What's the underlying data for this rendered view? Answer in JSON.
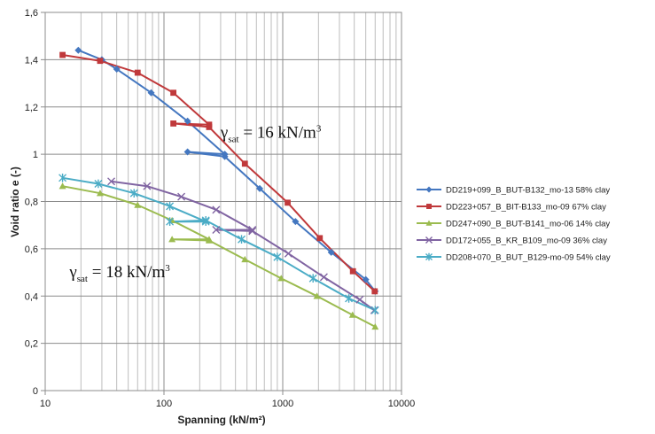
{
  "chart_data": {
    "type": "line",
    "xlabel": "Spanning  (kN/m²)",
    "ylabel": "Void ratio e (-)",
    "xscale": "log",
    "xlim": [
      10,
      10000
    ],
    "ylim": [
      0,
      1.6
    ],
    "x_ticks": [
      10,
      100,
      1000,
      10000
    ],
    "x_tick_labels": [
      "10",
      "100",
      "1000",
      "10000"
    ],
    "y_ticks": [
      0,
      0.2,
      0.4,
      0.6,
      0.8,
      1,
      1.2,
      1.4,
      1.6
    ],
    "y_tick_labels": [
      "0",
      "0,2",
      "0,4",
      "0,6",
      "0,8",
      "1",
      "1,2",
      "1,4",
      "1,6"
    ],
    "grid": "log-minor vertical, major horizontal",
    "legend_position": "right",
    "annotations": [
      {
        "prefix": "γ",
        "sub": "sat",
        "rest": " = 16 kN/m",
        "sup": "3",
        "x": 300,
        "y": 1.07
      },
      {
        "prefix": "γ",
        "sub": "sat",
        "rest": " = 18 kN/m",
        "sup": "3",
        "x": 16,
        "y": 0.48
      }
    ],
    "series": [
      {
        "name": "DD219+099_B_BUT-B132_mo-13 58% clay",
        "color": "#4477c0",
        "marker": "diamond",
        "points": [
          [
            19,
            1.44
          ],
          [
            30,
            1.4
          ],
          [
            40,
            1.36
          ],
          [
            78,
            1.26
          ],
          [
            158,
            1.14
          ],
          [
            325,
            1.0
          ],
          [
            158,
            1.01
          ],
          [
            325,
            0.99
          ],
          [
            640,
            0.855
          ],
          [
            1280,
            0.715
          ],
          [
            2560,
            0.585
          ],
          [
            5000,
            0.47
          ],
          [
            6000,
            0.42
          ]
        ]
      },
      {
        "name": "DD223+057_B_BIT-B133_mo-09 67% clay",
        "color": "#c0393b",
        "marker": "square",
        "points": [
          [
            14,
            1.42
          ],
          [
            29,
            1.395
          ],
          [
            60,
            1.345
          ],
          [
            120,
            1.26
          ],
          [
            240,
            1.125
          ],
          [
            120,
            1.13
          ],
          [
            240,
            1.115
          ],
          [
            480,
            0.96
          ],
          [
            1100,
            0.795
          ],
          [
            2050,
            0.645
          ],
          [
            3900,
            0.505
          ],
          [
            5950,
            0.42
          ]
        ]
      },
      {
        "name": "DD247+090_B_BUT-B141_mo-06 14% clay",
        "color": "#9bbb4f",
        "marker": "triangle",
        "points": [
          [
            14,
            0.865
          ],
          [
            29,
            0.835
          ],
          [
            60,
            0.785
          ],
          [
            117,
            0.72
          ],
          [
            240,
            0.64
          ],
          [
            117,
            0.64
          ],
          [
            240,
            0.635
          ],
          [
            480,
            0.555
          ],
          [
            970,
            0.475
          ],
          [
            1940,
            0.4
          ],
          [
            3870,
            0.32
          ],
          [
            6000,
            0.27
          ]
        ]
      },
      {
        "name": "DD172+055_B_KR_B109_mo-09 36% clay",
        "color": "#8064a2",
        "marker": "x",
        "points": [
          [
            36,
            0.885
          ],
          [
            72,
            0.865
          ],
          [
            140,
            0.82
          ],
          [
            275,
            0.765
          ],
          [
            555,
            0.68
          ],
          [
            275,
            0.68
          ],
          [
            555,
            0.675
          ],
          [
            1115,
            0.58
          ],
          [
            2220,
            0.48
          ],
          [
            4450,
            0.385
          ],
          [
            5900,
            0.34
          ]
        ]
      },
      {
        "name": "DD208+070_B_BUT_B129-mo-09 54% clay",
        "color": "#4bacc6",
        "marker": "star",
        "points": [
          [
            14,
            0.9
          ],
          [
            28,
            0.875
          ],
          [
            56,
            0.835
          ],
          [
            112,
            0.78
          ],
          [
            225,
            0.715
          ],
          [
            112,
            0.715
          ],
          [
            225,
            0.72
          ],
          [
            450,
            0.64
          ],
          [
            900,
            0.565
          ],
          [
            1800,
            0.475
          ],
          [
            3600,
            0.39
          ],
          [
            6000,
            0.34
          ]
        ]
      }
    ]
  }
}
